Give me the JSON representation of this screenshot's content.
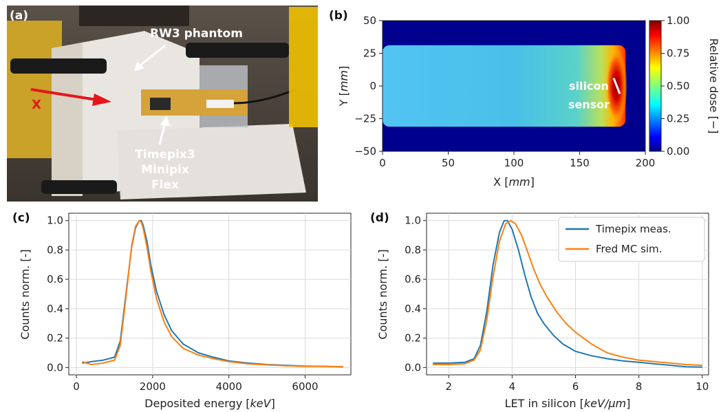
{
  "panels": {
    "a": {
      "label": "(a)",
      "phantom_label": "RW3 phantom",
      "axis_label": "X",
      "detector_label": [
        "Timepix3",
        "Minipix",
        "Flex"
      ]
    },
    "b": {
      "label": "(b)"
    },
    "c": {
      "label": "(c)"
    },
    "d": {
      "label": "(d)"
    }
  },
  "colors": {
    "timepix": "#1f77b4",
    "fred": "#ff7f0e",
    "arrow": "#e8141b"
  },
  "chart_data": [
    {
      "id": "b",
      "type": "heatmap",
      "xlabel_plain": "X ",
      "xlabel_unit": "mm",
      "ylabel_plain": "Y ",
      "ylabel_unit": "mm",
      "xlim": [
        0,
        200
      ],
      "ylim": [
        -50,
        50
      ],
      "xticks": [
        "0",
        "50",
        "100",
        "150",
        "200"
      ],
      "yticks": [
        "50",
        "25",
        "0",
        "−25",
        "−50"
      ],
      "colorbar": {
        "label": "Relative dose [−]",
        "range": [
          0,
          1
        ],
        "ticks": [
          "1.00",
          "0.75",
          "0.50",
          "0.25",
          "0.00"
        ]
      },
      "beam": {
        "half_width_mm": 28,
        "plateau_dose": 0.38,
        "peak_x_mm": 178,
        "peak_dose": 1.0,
        "end_x_mm": 185
      },
      "annotation": [
        "silicon",
        "sensor"
      ]
    },
    {
      "id": "c",
      "type": "line",
      "xlabel_plain": "Deposited energy ",
      "xlabel_unit": "keV",
      "ylabel": "Counts norm. [-]",
      "xlim": [
        -200,
        7200
      ],
      "ylim": [
        -0.05,
        1.05
      ],
      "xticks": [
        0,
        2000,
        4000,
        6000
      ],
      "yticks": [
        "0.0",
        "0.2",
        "0.4",
        "0.6",
        "0.8",
        "1.0"
      ],
      "yticks_v": [
        0,
        0.2,
        0.4,
        0.6,
        0.8,
        1.0
      ],
      "series": [
        {
          "color": "#1f77b4",
          "x": [
            150,
            400,
            700,
            1000,
            1150,
            1300,
            1450,
            1550,
            1650,
            1700,
            1750,
            1850,
            1950,
            2100,
            2300,
            2500,
            2800,
            3200,
            3600,
            4000,
            4500,
            5000,
            5500,
            6000,
            6500,
            7000
          ],
          "y": [
            0.03,
            0.04,
            0.05,
            0.07,
            0.18,
            0.5,
            0.82,
            0.95,
            1.0,
            1.0,
            0.97,
            0.86,
            0.7,
            0.52,
            0.36,
            0.25,
            0.16,
            0.1,
            0.07,
            0.045,
            0.03,
            0.02,
            0.015,
            0.01,
            0.008,
            0.005
          ]
        },
        {
          "color": "#ff7f0e",
          "x": [
            150,
            400,
            700,
            1000,
            1150,
            1300,
            1450,
            1550,
            1650,
            1700,
            1750,
            1850,
            1950,
            2100,
            2300,
            2500,
            2800,
            3200,
            3600,
            4000,
            4500,
            5000,
            5500,
            6000,
            6500,
            7000
          ],
          "y": [
            0.04,
            0.02,
            0.03,
            0.05,
            0.15,
            0.48,
            0.83,
            0.96,
            1.0,
            0.99,
            0.95,
            0.82,
            0.66,
            0.47,
            0.31,
            0.21,
            0.13,
            0.085,
            0.06,
            0.04,
            0.025,
            0.018,
            0.012,
            0.008,
            0.007,
            0.005
          ]
        }
      ]
    },
    {
      "id": "d",
      "type": "line",
      "xlabel_plain": "LET in silicon ",
      "xlabel_unit": "keV/µm",
      "ylabel": "Counts norm. [-]",
      "xlim": [
        1.3,
        10.2
      ],
      "ylim": [
        -0.05,
        1.05
      ],
      "xticks": [
        2,
        4,
        6,
        8,
        10
      ],
      "yticks": [
        "0.0",
        "0.2",
        "0.4",
        "0.6",
        "0.8",
        "1.0"
      ],
      "yticks_v": [
        0,
        0.2,
        0.4,
        0.6,
        0.8,
        1.0
      ],
      "series": [
        {
          "name": "Timepix meas.",
          "color": "#1f77b4",
          "x": [
            1.5,
            2.0,
            2.5,
            2.8,
            3.0,
            3.2,
            3.4,
            3.6,
            3.75,
            3.85,
            4.0,
            4.2,
            4.4,
            4.6,
            4.8,
            5.0,
            5.3,
            5.6,
            6.0,
            6.5,
            7.0,
            7.5,
            8.0,
            8.5,
            9.0,
            9.5,
            10.0
          ],
          "y": [
            0.03,
            0.03,
            0.035,
            0.06,
            0.15,
            0.38,
            0.7,
            0.92,
            1.0,
            1.0,
            0.94,
            0.8,
            0.63,
            0.48,
            0.37,
            0.3,
            0.22,
            0.16,
            0.11,
            0.08,
            0.06,
            0.045,
            0.035,
            0.025,
            0.015,
            0.005,
            0.003
          ]
        },
        {
          "name": "Fred MC sim.",
          "color": "#ff7f0e",
          "x": [
            1.5,
            2.0,
            2.5,
            2.8,
            3.0,
            3.2,
            3.4,
            3.6,
            3.8,
            3.95,
            4.1,
            4.3,
            4.5,
            4.7,
            4.9,
            5.1,
            5.4,
            5.7,
            6.0,
            6.5,
            7.0,
            7.5,
            8.0,
            8.5,
            9.0,
            9.5,
            10.0
          ],
          "y": [
            0.02,
            0.02,
            0.025,
            0.05,
            0.12,
            0.32,
            0.62,
            0.86,
            0.98,
            1.0,
            0.98,
            0.9,
            0.78,
            0.66,
            0.56,
            0.48,
            0.38,
            0.3,
            0.24,
            0.16,
            0.1,
            0.07,
            0.05,
            0.04,
            0.03,
            0.02,
            0.015
          ]
        }
      ]
    }
  ]
}
